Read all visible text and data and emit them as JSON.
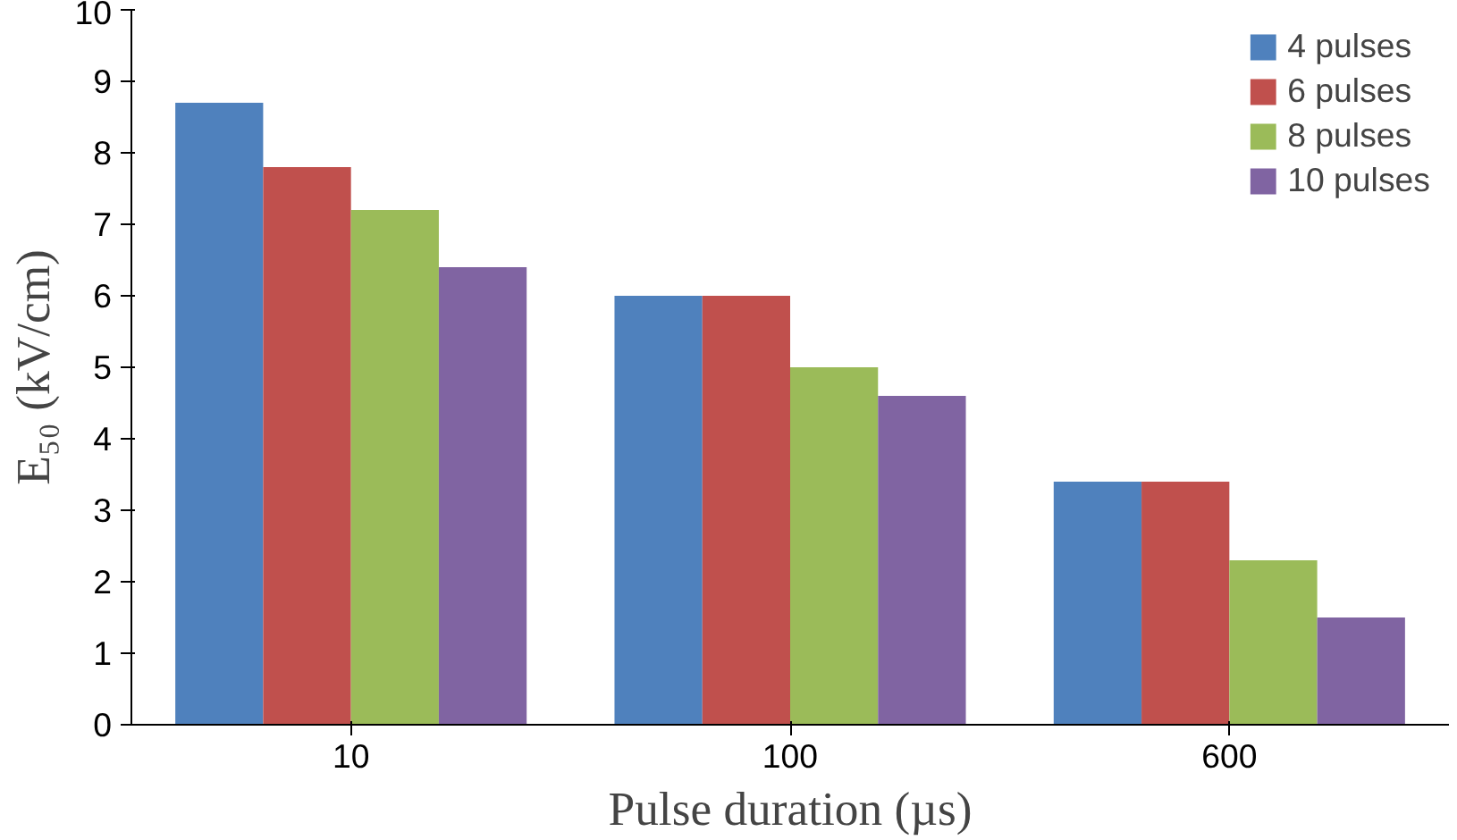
{
  "chart_data": {
    "type": "bar",
    "xlabel": "Pulse duration (µs)",
    "ylabel": "E₅₀ (kV/cm)",
    "categories": [
      "10",
      "100",
      "600"
    ],
    "series": [
      {
        "name": "4 pulses",
        "color": "#4f81bd",
        "values": [
          8.7,
          6.0,
          3.4
        ]
      },
      {
        "name": "6 pulses",
        "color": "#c0504d",
        "values": [
          7.8,
          6.0,
          3.4
        ]
      },
      {
        "name": "8 pulses",
        "color": "#9bbb59",
        "values": [
          7.2,
          5.0,
          2.3
        ]
      },
      {
        "name": "10 pulses",
        "color": "#8064a2",
        "values": [
          6.4,
          4.6,
          1.5
        ]
      }
    ],
    "ylim": [
      0,
      10
    ],
    "yticks": [
      0,
      1,
      2,
      3,
      4,
      5,
      6,
      7,
      8,
      9,
      10
    ],
    "grid": false,
    "legend": "top right"
  }
}
